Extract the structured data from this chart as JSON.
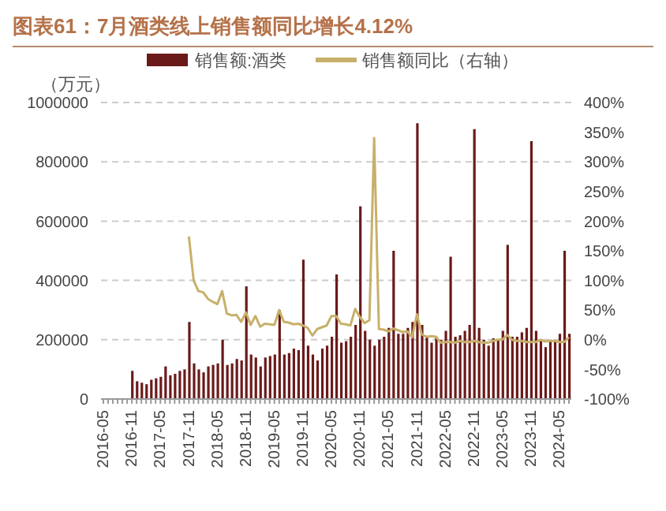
{
  "chart_data": {
    "type": "bar",
    "title": "图表61：7月酒类线上销售额同比增长4.12%",
    "ylabel": "（万元）",
    "categories": [
      "2016-05",
      null,
      null,
      null,
      null,
      null,
      "2016-11",
      null,
      null,
      null,
      null,
      null,
      "2017-05",
      null,
      null,
      null,
      null,
      null,
      "2017-11",
      null,
      null,
      null,
      null,
      null,
      "2018-05",
      null,
      null,
      null,
      null,
      null,
      "2018-11",
      null,
      null,
      null,
      null,
      null,
      "2019-05",
      null,
      null,
      null,
      null,
      null,
      "2019-11",
      null,
      null,
      null,
      null,
      null,
      "2020-05",
      null,
      null,
      null,
      null,
      null,
      "2020-11",
      null,
      null,
      null,
      null,
      null,
      "2021-05",
      null,
      null,
      null,
      null,
      null,
      "2021-11",
      null,
      null,
      null,
      null,
      null,
      "2022-05",
      null,
      null,
      null,
      null,
      null,
      "2022-11",
      null,
      null,
      null,
      null,
      null,
      "2023-05",
      null,
      null,
      null,
      null,
      null,
      "2023-11",
      null,
      null,
      null,
      null,
      null,
      "2024-05",
      null,
      null
    ],
    "series": [
      {
        "name": "销售额:酒类",
        "color": "#6b1a1a",
        "values": [
          null,
          null,
          null,
          null,
          null,
          null,
          95000,
          60000,
          55000,
          50000,
          65000,
          70000,
          75000,
          110000,
          80000,
          85000,
          95000,
          100000,
          260000,
          120000,
          100000,
          90000,
          110000,
          115000,
          120000,
          200000,
          115000,
          120000,
          135000,
          130000,
          380000,
          150000,
          140000,
          110000,
          140000,
          145000,
          150000,
          300000,
          150000,
          155000,
          170000,
          165000,
          470000,
          180000,
          150000,
          130000,
          170000,
          180000,
          210000,
          420000,
          190000,
          195000,
          210000,
          250000,
          650000,
          230000,
          200000,
          180000,
          200000,
          210000,
          240000,
          500000,
          220000,
          220000,
          240000,
          260000,
          930000,
          250000,
          210000,
          190000,
          210000,
          200000,
          230000,
          480000,
          210000,
          215000,
          230000,
          250000,
          910000,
          240000,
          200000,
          180000,
          205000,
          200000,
          230000,
          520000,
          210000,
          210000,
          225000,
          240000,
          870000,
          230000,
          200000,
          175000,
          200000,
          195000,
          220000,
          500000,
          220000
        ]
      },
      {
        "name": "销售额同比（右轴）",
        "type": "line",
        "axis": "y2",
        "color": "#c8b06a",
        "values": [
          null,
          null,
          null,
          null,
          null,
          null,
          null,
          null,
          null,
          null,
          null,
          null,
          null,
          null,
          null,
          null,
          null,
          null,
          174,
          100,
          82,
          80,
          69,
          64,
          60,
          82,
          44,
          41,
          42,
          30,
          46,
          25,
          40,
          22,
          27,
          26,
          25,
          50,
          30,
          29,
          26,
          27,
          24,
          20,
          7,
          18,
          21,
          24,
          40,
          40,
          27,
          26,
          24,
          52,
          38,
          28,
          33,
          340,
          18,
          17,
          14,
          19,
          16,
          13,
          14,
          4,
          43,
          9,
          5,
          6,
          5,
          -5,
          -4,
          -4,
          -5,
          -2,
          -4,
          -4,
          -2,
          -4,
          -5,
          -5,
          -2,
          0,
          0,
          8,
          0,
          -2,
          -2,
          -4,
          -4,
          -4,
          0,
          -3,
          -2,
          -2,
          -4,
          -4,
          4
        ]
      }
    ],
    "ylim": [
      0,
      1000000
    ],
    "yticks": [
      0,
      200000,
      400000,
      600000,
      800000,
      1000000
    ],
    "y2lim": [
      -100,
      400
    ],
    "y2ticks": [
      {
        "value": -100,
        "label": "-100%"
      },
      {
        "value": -50,
        "label": "-50%"
      },
      {
        "value": 0,
        "label": "0%"
      },
      {
        "value": 50,
        "label": "50%"
      },
      {
        "value": 100,
        "label": "100%"
      },
      {
        "value": 150,
        "label": "150%"
      },
      {
        "value": 200,
        "label": "200%"
      },
      {
        "value": 250,
        "label": "250%"
      },
      {
        "value": 300,
        "label": "300%"
      },
      {
        "value": 350,
        "label": "350%"
      },
      {
        "value": 400,
        "label": "400%"
      }
    ],
    "grid": "y",
    "legend": "top"
  }
}
